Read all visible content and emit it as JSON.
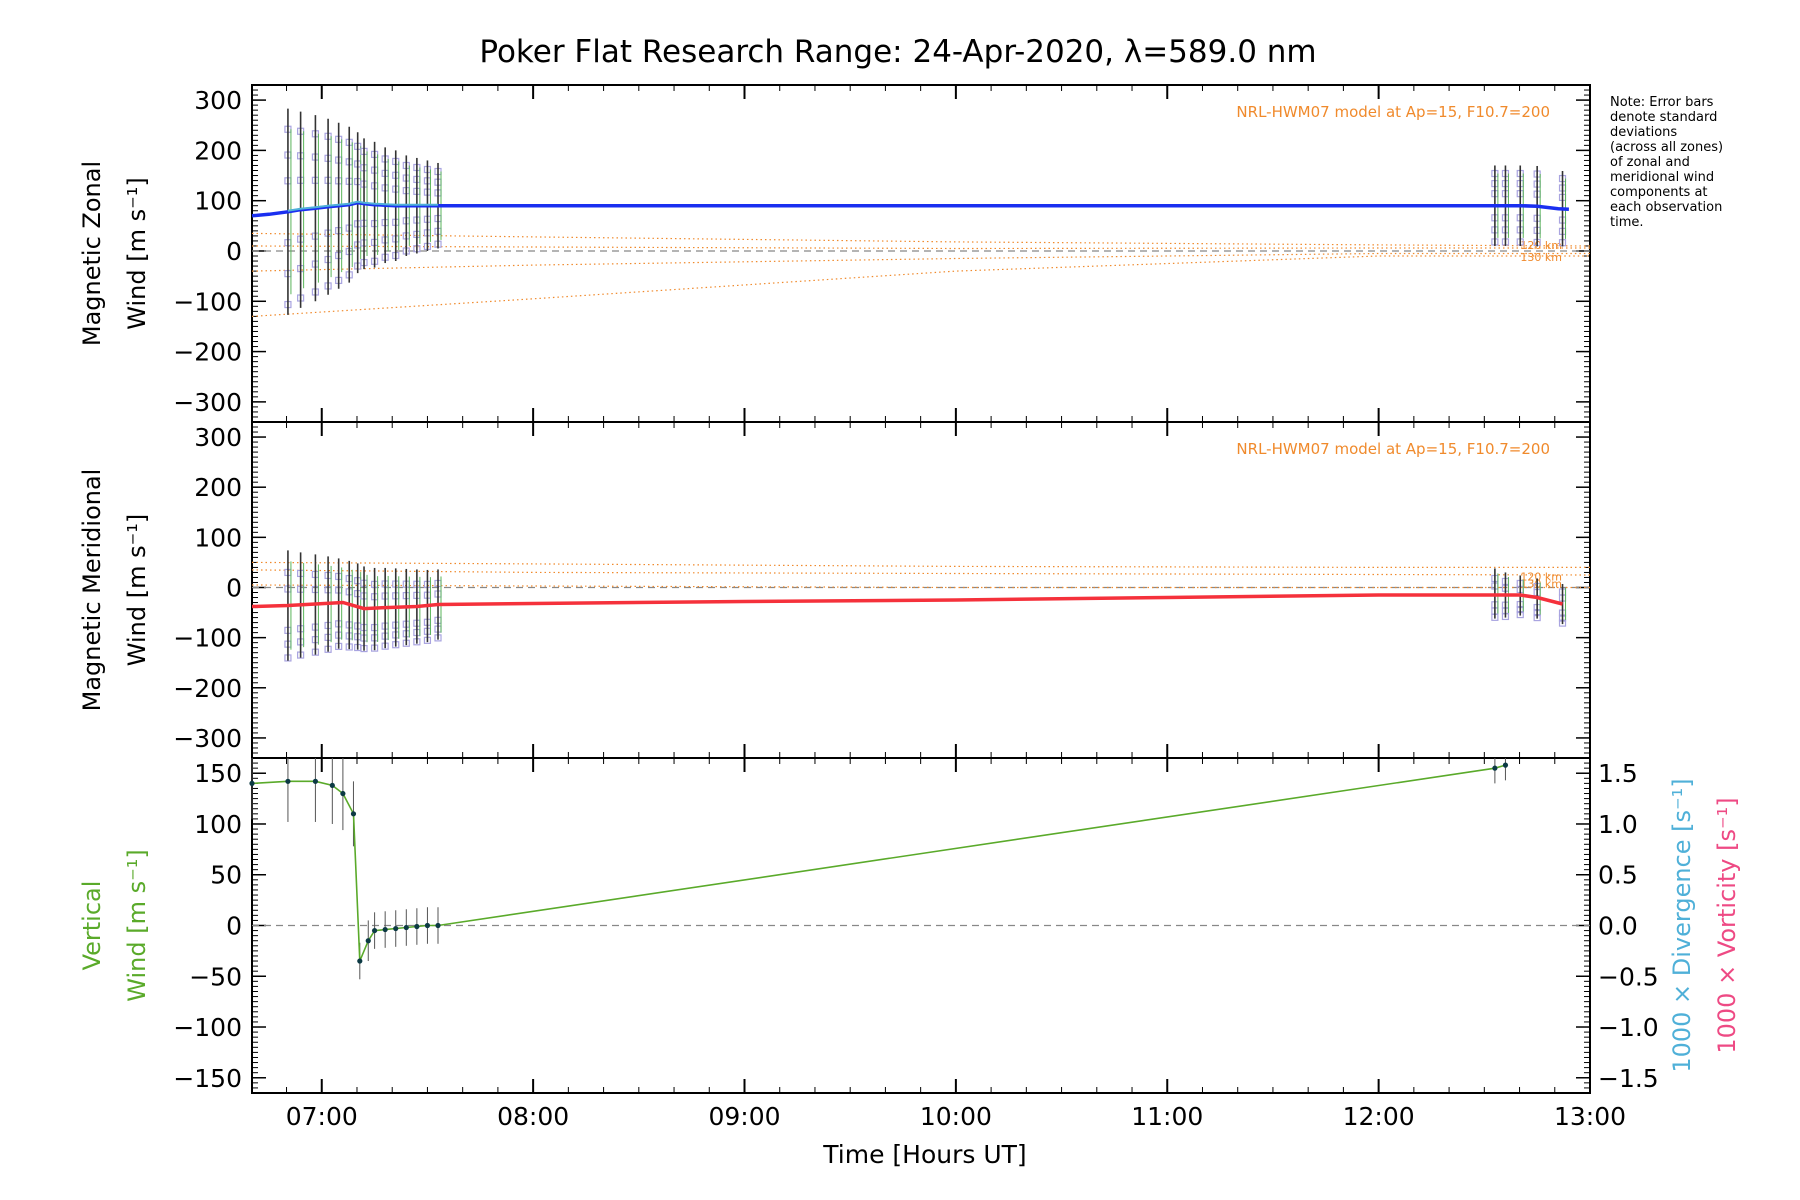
{
  "title": "Poker Flat Research Range: 24-Apr-2020, λ=589.0 nm",
  "note": [
    "Note: Error bars",
    "denote standard",
    "deviations",
    "(across all zones)",
    "of zonal and",
    "meridional wind",
    "components at",
    "each observation",
    "time."
  ],
  "model_label": "NRL-HWM07 model at Ap=15, F10.7=200",
  "alt_labels": [
    "120 km",
    "130 km"
  ],
  "xlabel": "Time [Hours UT]",
  "colors": {
    "zonal": "#1a2ff0",
    "meridional": "#f5313b",
    "vertical": "#5aaa2a",
    "model": "#f08a2c",
    "zones": "#a9a4e0",
    "divergence": "#4fb0d8",
    "vorticity": "#ee4a84",
    "errbar": "#333333"
  },
  "chart_data": [
    {
      "type": "line",
      "name": "zonal",
      "ylabel": [
        "Magnetic Zonal",
        "Wind [m s⁻¹]"
      ],
      "xticks": [
        "07:00",
        "08:00",
        "09:00",
        "10:00",
        "11:00",
        "12:00",
        "13:00"
      ],
      "xlim": [
        6.67,
        13.0
      ],
      "ylim": [
        -340,
        330
      ],
      "yticks": [
        -300,
        -200,
        -100,
        0,
        100,
        200,
        300
      ],
      "model_label": "NRL-HWM07 model at Ap=15, F10.7=200",
      "x": [
        6.67,
        6.75,
        6.84,
        6.9,
        6.97,
        7.03,
        7.08,
        7.13,
        7.17,
        7.2,
        7.25,
        7.3,
        7.35,
        7.4,
        7.45,
        7.5,
        7.55,
        8.0,
        9.0,
        10.0,
        11.0,
        12.0,
        12.5,
        12.6,
        12.67,
        12.75,
        12.85,
        12.9
      ],
      "y": [
        70,
        73,
        78,
        82,
        85,
        88,
        90,
        92,
        96,
        94,
        92,
        91,
        90,
        90,
        90,
        90,
        90,
        90,
        90,
        90,
        90,
        90,
        90,
        90,
        90,
        89,
        84,
        83
      ],
      "obs_x": [
        6.84,
        6.9,
        6.97,
        7.03,
        7.08,
        7.13,
        7.17,
        7.2,
        7.25,
        7.3,
        7.35,
        7.4,
        7.45,
        7.5,
        7.55,
        12.55,
        12.6,
        12.67,
        12.75,
        12.87
      ],
      "obs_y": [
        78,
        82,
        85,
        88,
        90,
        92,
        96,
        94,
        92,
        91,
        90,
        90,
        90,
        90,
        90,
        90,
        90,
        90,
        89,
        84
      ],
      "obs_err": [
        205,
        195,
        185,
        175,
        165,
        155,
        140,
        130,
        125,
        115,
        110,
        100,
        95,
        90,
        85,
        80,
        80,
        80,
        80,
        75
      ]
    },
    {
      "type": "line",
      "name": "meridional",
      "ylabel": [
        "Magnetic Meridional",
        "Wind [m s⁻¹]"
      ],
      "xticks": [
        "07:00",
        "08:00",
        "09:00",
        "10:00",
        "11:00",
        "12:00",
        "13:00"
      ],
      "xlim": [
        6.67,
        13.0
      ],
      "ylim": [
        -340,
        330
      ],
      "yticks": [
        -300,
        -200,
        -100,
        0,
        100,
        200,
        300
      ],
      "model_label": "NRL-HWM07 model at Ap=15, F10.7=200",
      "x": [
        6.67,
        6.84,
        6.97,
        7.1,
        7.2,
        7.3,
        7.45,
        7.55,
        8.0,
        9.0,
        10.0,
        11.0,
        12.0,
        12.5,
        12.67,
        12.75,
        12.87
      ],
      "y": [
        -38,
        -36,
        -33,
        -30,
        -42,
        -40,
        -38,
        -34,
        -32,
        -28,
        -25,
        -20,
        -15,
        -15,
        -15,
        -20,
        -33
      ],
      "obs_x": [
        6.84,
        6.9,
        6.97,
        7.03,
        7.08,
        7.13,
        7.17,
        7.2,
        7.25,
        7.3,
        7.35,
        7.4,
        7.45,
        7.5,
        7.55,
        12.55,
        12.6,
        12.67,
        12.75,
        12.87
      ],
      "obs_y": [
        -36,
        -35,
        -34,
        -33,
        -32,
        -35,
        -38,
        -42,
        -43,
        -41,
        -40,
        -39,
        -38,
        -37,
        -34,
        -12,
        -15,
        -16,
        -22,
        -33
      ],
      "obs_err": [
        110,
        105,
        100,
        95,
        90,
        88,
        86,
        84,
        82,
        80,
        78,
        76,
        74,
        72,
        70,
        50,
        45,
        40,
        40,
        40
      ]
    },
    {
      "type": "line",
      "name": "vertical",
      "ylabel": [
        "Vertical",
        "Wind [m s⁻¹]"
      ],
      "y2label": [
        "1000 × Divergence [s⁻¹]",
        "1000 × Vorticity [s⁻¹]"
      ],
      "xticks": [
        "07:00",
        "08:00",
        "09:00",
        "10:00",
        "11:00",
        "12:00",
        "13:00"
      ],
      "xlim": [
        6.67,
        13.0
      ],
      "ylim": [
        -165,
        165
      ],
      "yticks": [
        -150,
        -100,
        -50,
        0,
        50,
        100,
        150
      ],
      "y2lim": [
        -1.65,
        1.65
      ],
      "y2ticks": [
        -1.5,
        -1.0,
        -0.5,
        0.0,
        0.5,
        1.0,
        1.5
      ],
      "x": [
        6.67,
        6.84,
        6.97,
        7.05,
        7.1,
        7.15,
        7.18,
        7.22,
        7.25,
        7.3,
        7.35,
        7.4,
        7.45,
        7.5,
        7.55,
        12.55,
        12.6
      ],
      "y": [
        140,
        142,
        142,
        138,
        130,
        110,
        -35,
        -15,
        -5,
        -4,
        -3,
        -2,
        -1,
        0,
        0,
        155,
        158
      ],
      "err": [
        35,
        40,
        40,
        38,
        36,
        32,
        18,
        20,
        18,
        18,
        18,
        18,
        18,
        18,
        18,
        15,
        15
      ]
    }
  ]
}
